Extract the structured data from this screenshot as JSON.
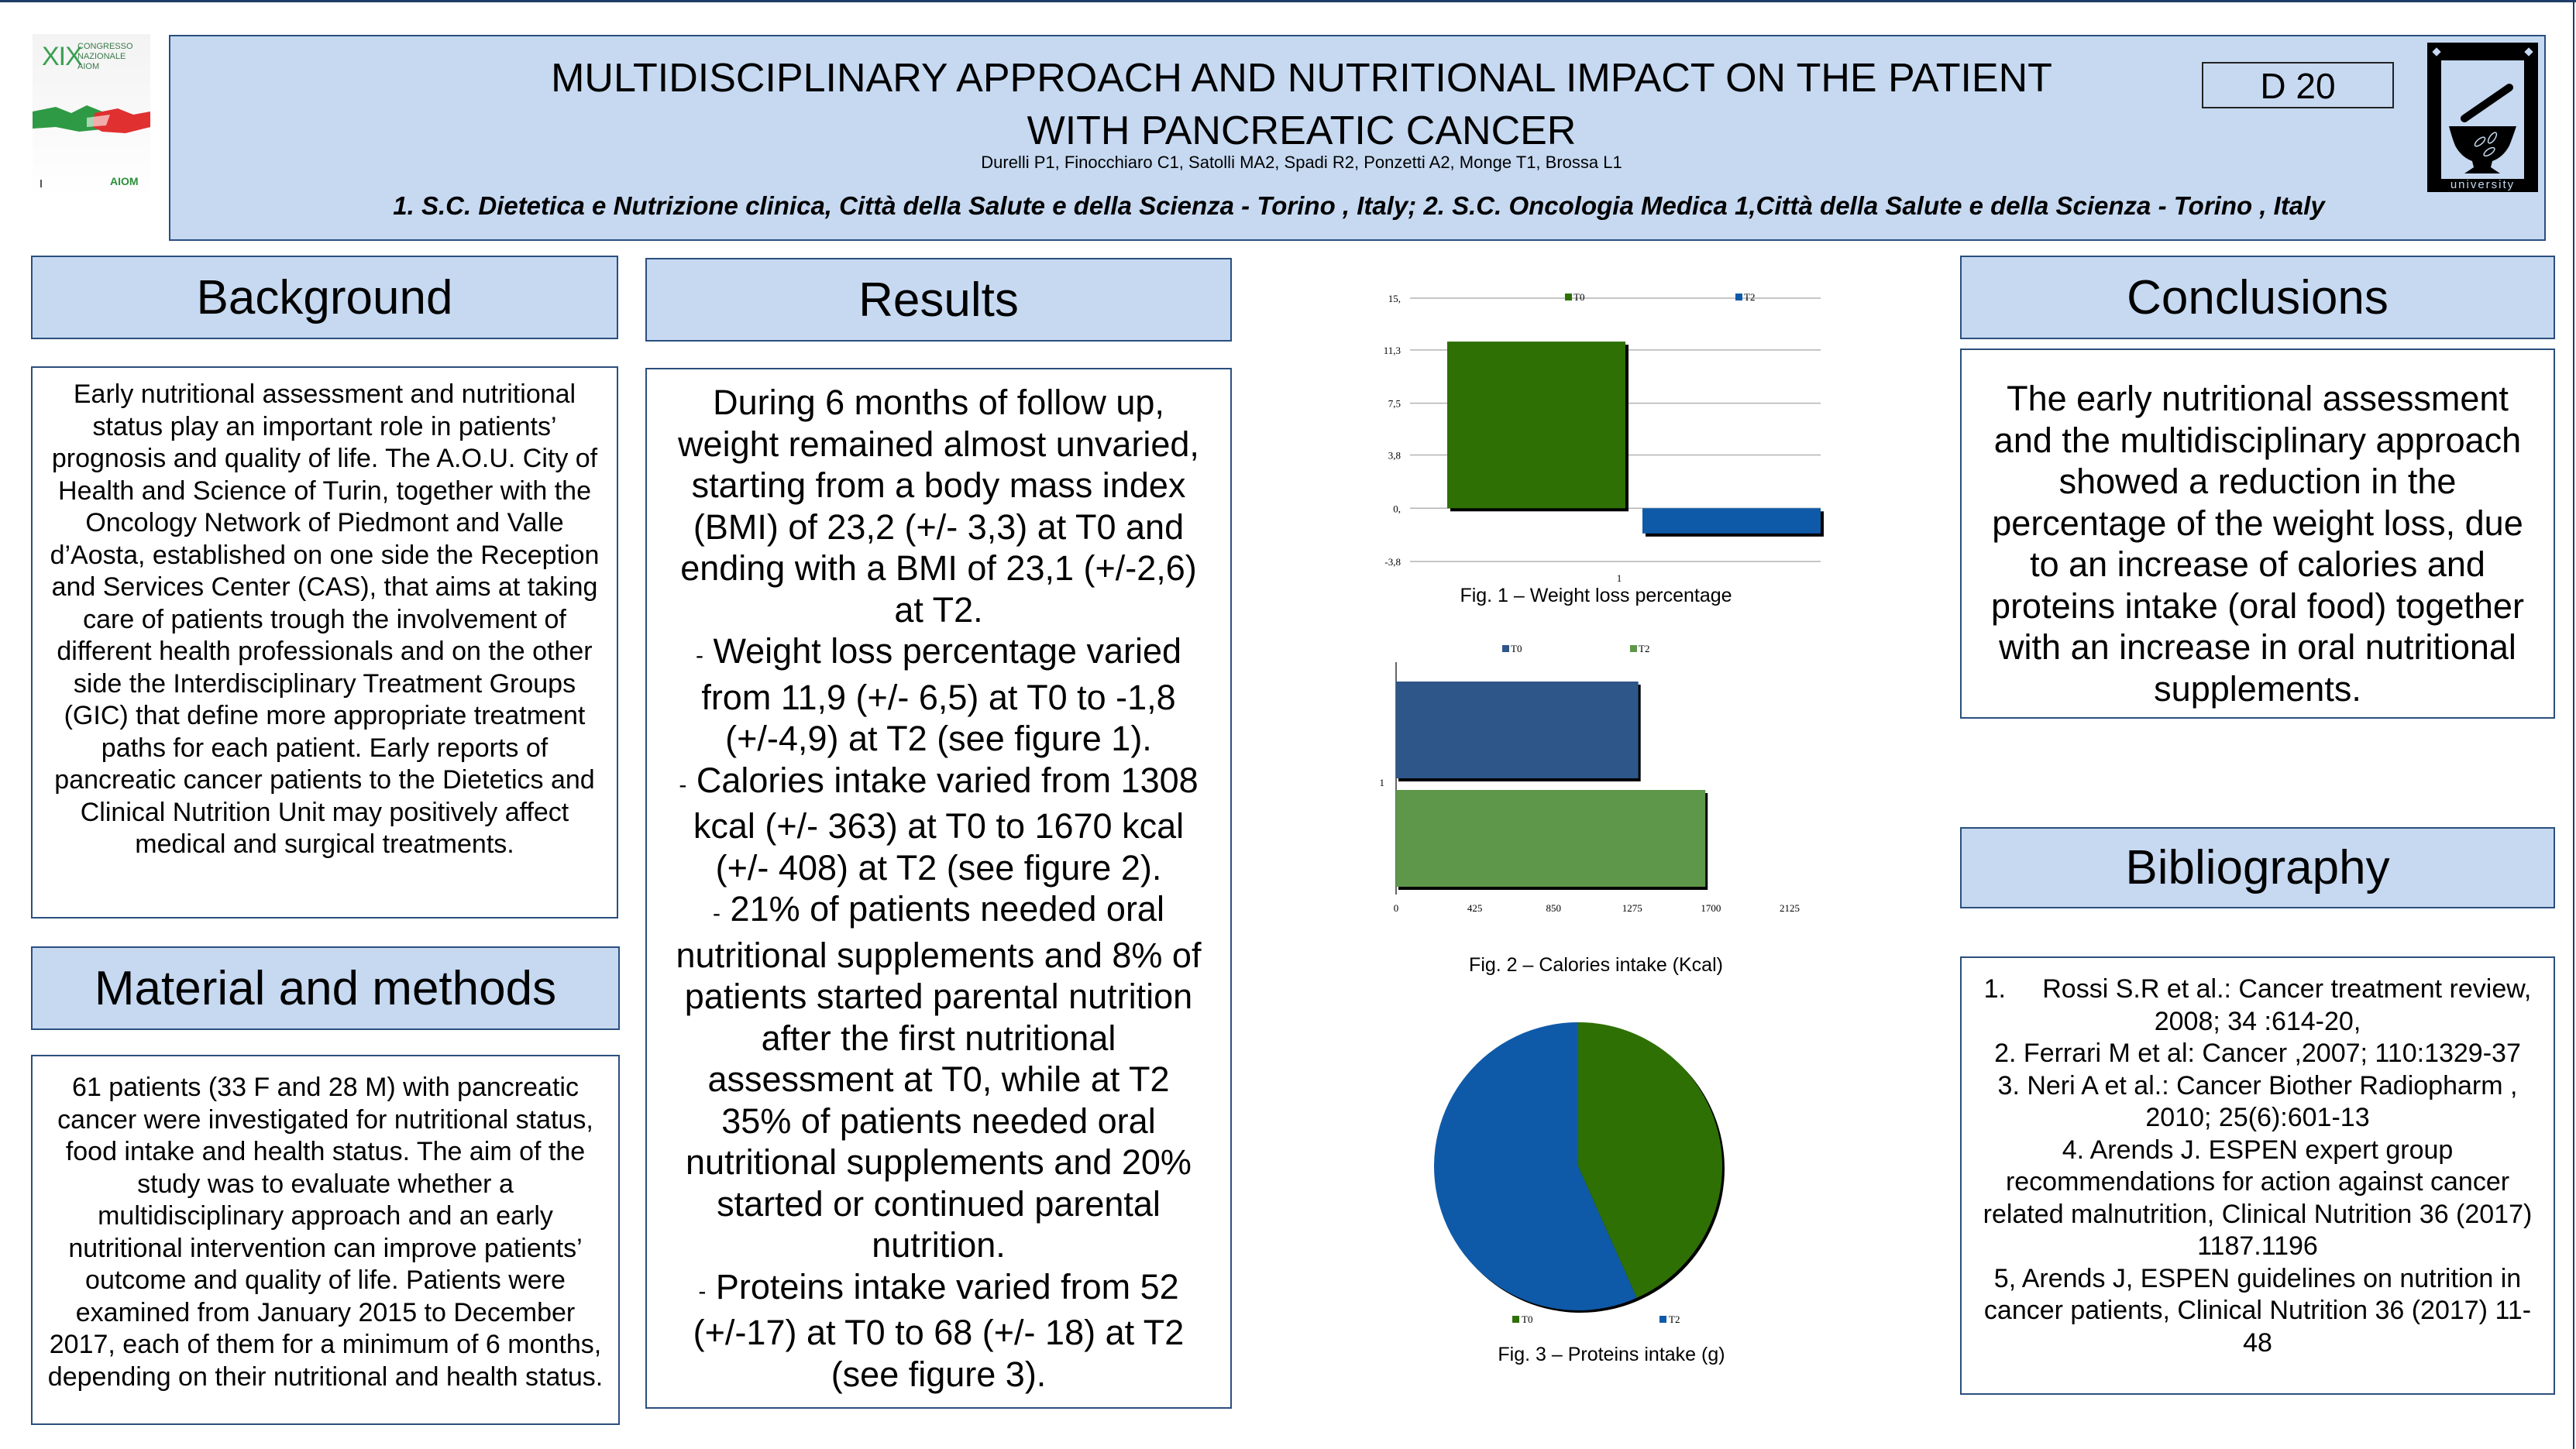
{
  "logo_left": {
    "roman": "XIX",
    "text": "CONGRESSO NAZIONALE AIOM",
    "acronym": "AIOM"
  },
  "header": {
    "title_line1": "MULTIDISCIPLINARY APPROACH AND NUTRITIONAL IMPACT ON THE PATIENT",
    "title_line2": "WITH PANCREATIC CANCER",
    "authors": "Durelli P1, Finocchiaro C1, Satolli MA2, Spadi R2, Ponzetti A2, Monge T1, Brossa L1",
    "affiliations": "1. S.C. Dietetica e Nutrizione clinica, Città della Salute e della Scienza - Torino , Italy; 2. S.C. Oncologia Medica 1,Città della Salute e della Scienza - Torino , Italy",
    "poster_code": "D 20",
    "university_logo_label": "university",
    "university_logo_icon": "mortar-pestle-icon"
  },
  "sections": {
    "background": {
      "heading": "Background",
      "body": "Early nutritional assessment and nutritional status play an important role in patients’ prognosis and quality of life. The A.O.U. City of Health and Science of Turin, together with the Oncology Network of Piedmont and Valle d’Aosta, established on one side the Reception and Services Center (CAS), that aims at taking care of patients trough the involvement of different health professionals and on the other side the Interdisciplinary Treatment Groups (GIC) that define more appropriate treatment paths for each patient. Early reports of pancreatic cancer patients to the Dietetics and Clinical Nutrition Unit may positively affect medical and surgical treatments."
    },
    "methods": {
      "heading": "Material and methods",
      "body": "61 patients (33 F and 28 M) with pancreatic cancer were investigated for nutritional status, food intake and health status. The aim of the study was to evaluate whether a multidisciplinary approach and an early nutritional intervention can improve patients’ outcome and quality of life. Patients were examined from January 2015 to December 2017, each of them for a minimum of 6 months, depending on their nutritional and health status."
    },
    "results": {
      "heading": "Results",
      "intro": "During 6 months of follow up, weight remained almost unvaried, starting from a body mass index (BMI) of 23,2 (+/- 3,3) at T0 and ending with a BMI of 23,1 (+/-2,6) at T2.",
      "bullets": [
        "Weight loss percentage varied from 11,9 (+/- 6,5) at T0 to -1,8 (+/-4,9) at T2 (see figure 1).",
        "Calories intake varied from 1308 kcal (+/- 363) at T0 to 1670 kcal (+/- 408) at T2 (see figure 2).",
        "21% of patients needed oral nutritional supplements and 8% of patients started parental nutrition after the first nutritional assessment at T0, while at T2 35% of patients needed oral nutritional supplements and 20% started or continued parental nutrition.",
        "Proteins intake varied from 52 (+/-17) at T0 to 68 (+/- 18) at T2 (see figure 3)."
      ],
      "bullet_marker": "-"
    },
    "conclusions": {
      "heading": "Conclusions",
      "body": "The early nutritional assessment and the multidisciplinary approach showed a reduction in the percentage of the weight loss, due to an increase of calories and proteins intake (oral food) together with an increase in oral nutritional supplements."
    },
    "bibliography": {
      "heading": "Bibliography",
      "items": [
        "1.     Rossi S.R et al.: Cancer treatment review,  2008; 34 :614-20,",
        "2. Ferrari M et al: Cancer ,2007; 110:1329-37",
        "3. Neri A et al.: Cancer Biother Radiopharm , 2010; 25(6):601-13",
        "4. Arends J.  ESPEN expert group recommendations for action against cancer related malnutrition, Clinical Nutrition 36 (2017) 1187.1196",
        "5, Arends J, ESPEN guidelines on nutrition in cancer patients,  Clinical Nutrition 36 (2017) 11-48"
      ]
    }
  },
  "colors": {
    "header_fill": "#c6d9f1",
    "border": "#2b4f7e",
    "green_dark": "#2e7003",
    "blue_mid": "#0f5aa8",
    "navy": "#2e5689",
    "green_light": "#5e974a"
  },
  "chart_data": [
    {
      "type": "bar",
      "title": "Fig. 1 – Weight loss percentage",
      "categories": [
        "1"
      ],
      "series": [
        {
          "name": "T0",
          "values": [
            11.9
          ],
          "color": "#2e7003"
        },
        {
          "name": "T2",
          "values": [
            -1.8
          ],
          "color": "#0f5aa8"
        }
      ],
      "yticks": [
        -3.8,
        0,
        3.8,
        7.5,
        11.3,
        15
      ],
      "ytick_labels": [
        "-3,8",
        "0,",
        "3,8",
        "7,5",
        "11,3",
        "15,"
      ],
      "ylim": [
        -3.8,
        15
      ],
      "xlabel": "",
      "ylabel": "",
      "grid": true,
      "legend": "top"
    },
    {
      "type": "bar",
      "orientation": "horizontal",
      "title": "Fig. 2 – Calories intake (Kcal)",
      "categories": [
        "1"
      ],
      "series": [
        {
          "name": "T0",
          "values": [
            1308
          ],
          "color": "#2e5689"
        },
        {
          "name": "T2",
          "values": [
            1670
          ],
          "color": "#5e974a"
        }
      ],
      "xticks": [
        0,
        425,
        850,
        1275,
        1700,
        2125
      ],
      "xlim": [
        0,
        2125
      ],
      "xlabel": "",
      "ylabel": "",
      "grid": false,
      "legend": "top"
    },
    {
      "type": "pie",
      "title": "Fig. 3 – Proteins intake (g)",
      "labels": [
        "T0",
        "T2"
      ],
      "values": [
        52,
        68
      ],
      "colors": [
        "#2e7003",
        "#0f5aa8"
      ],
      "legend": "bottom"
    }
  ]
}
